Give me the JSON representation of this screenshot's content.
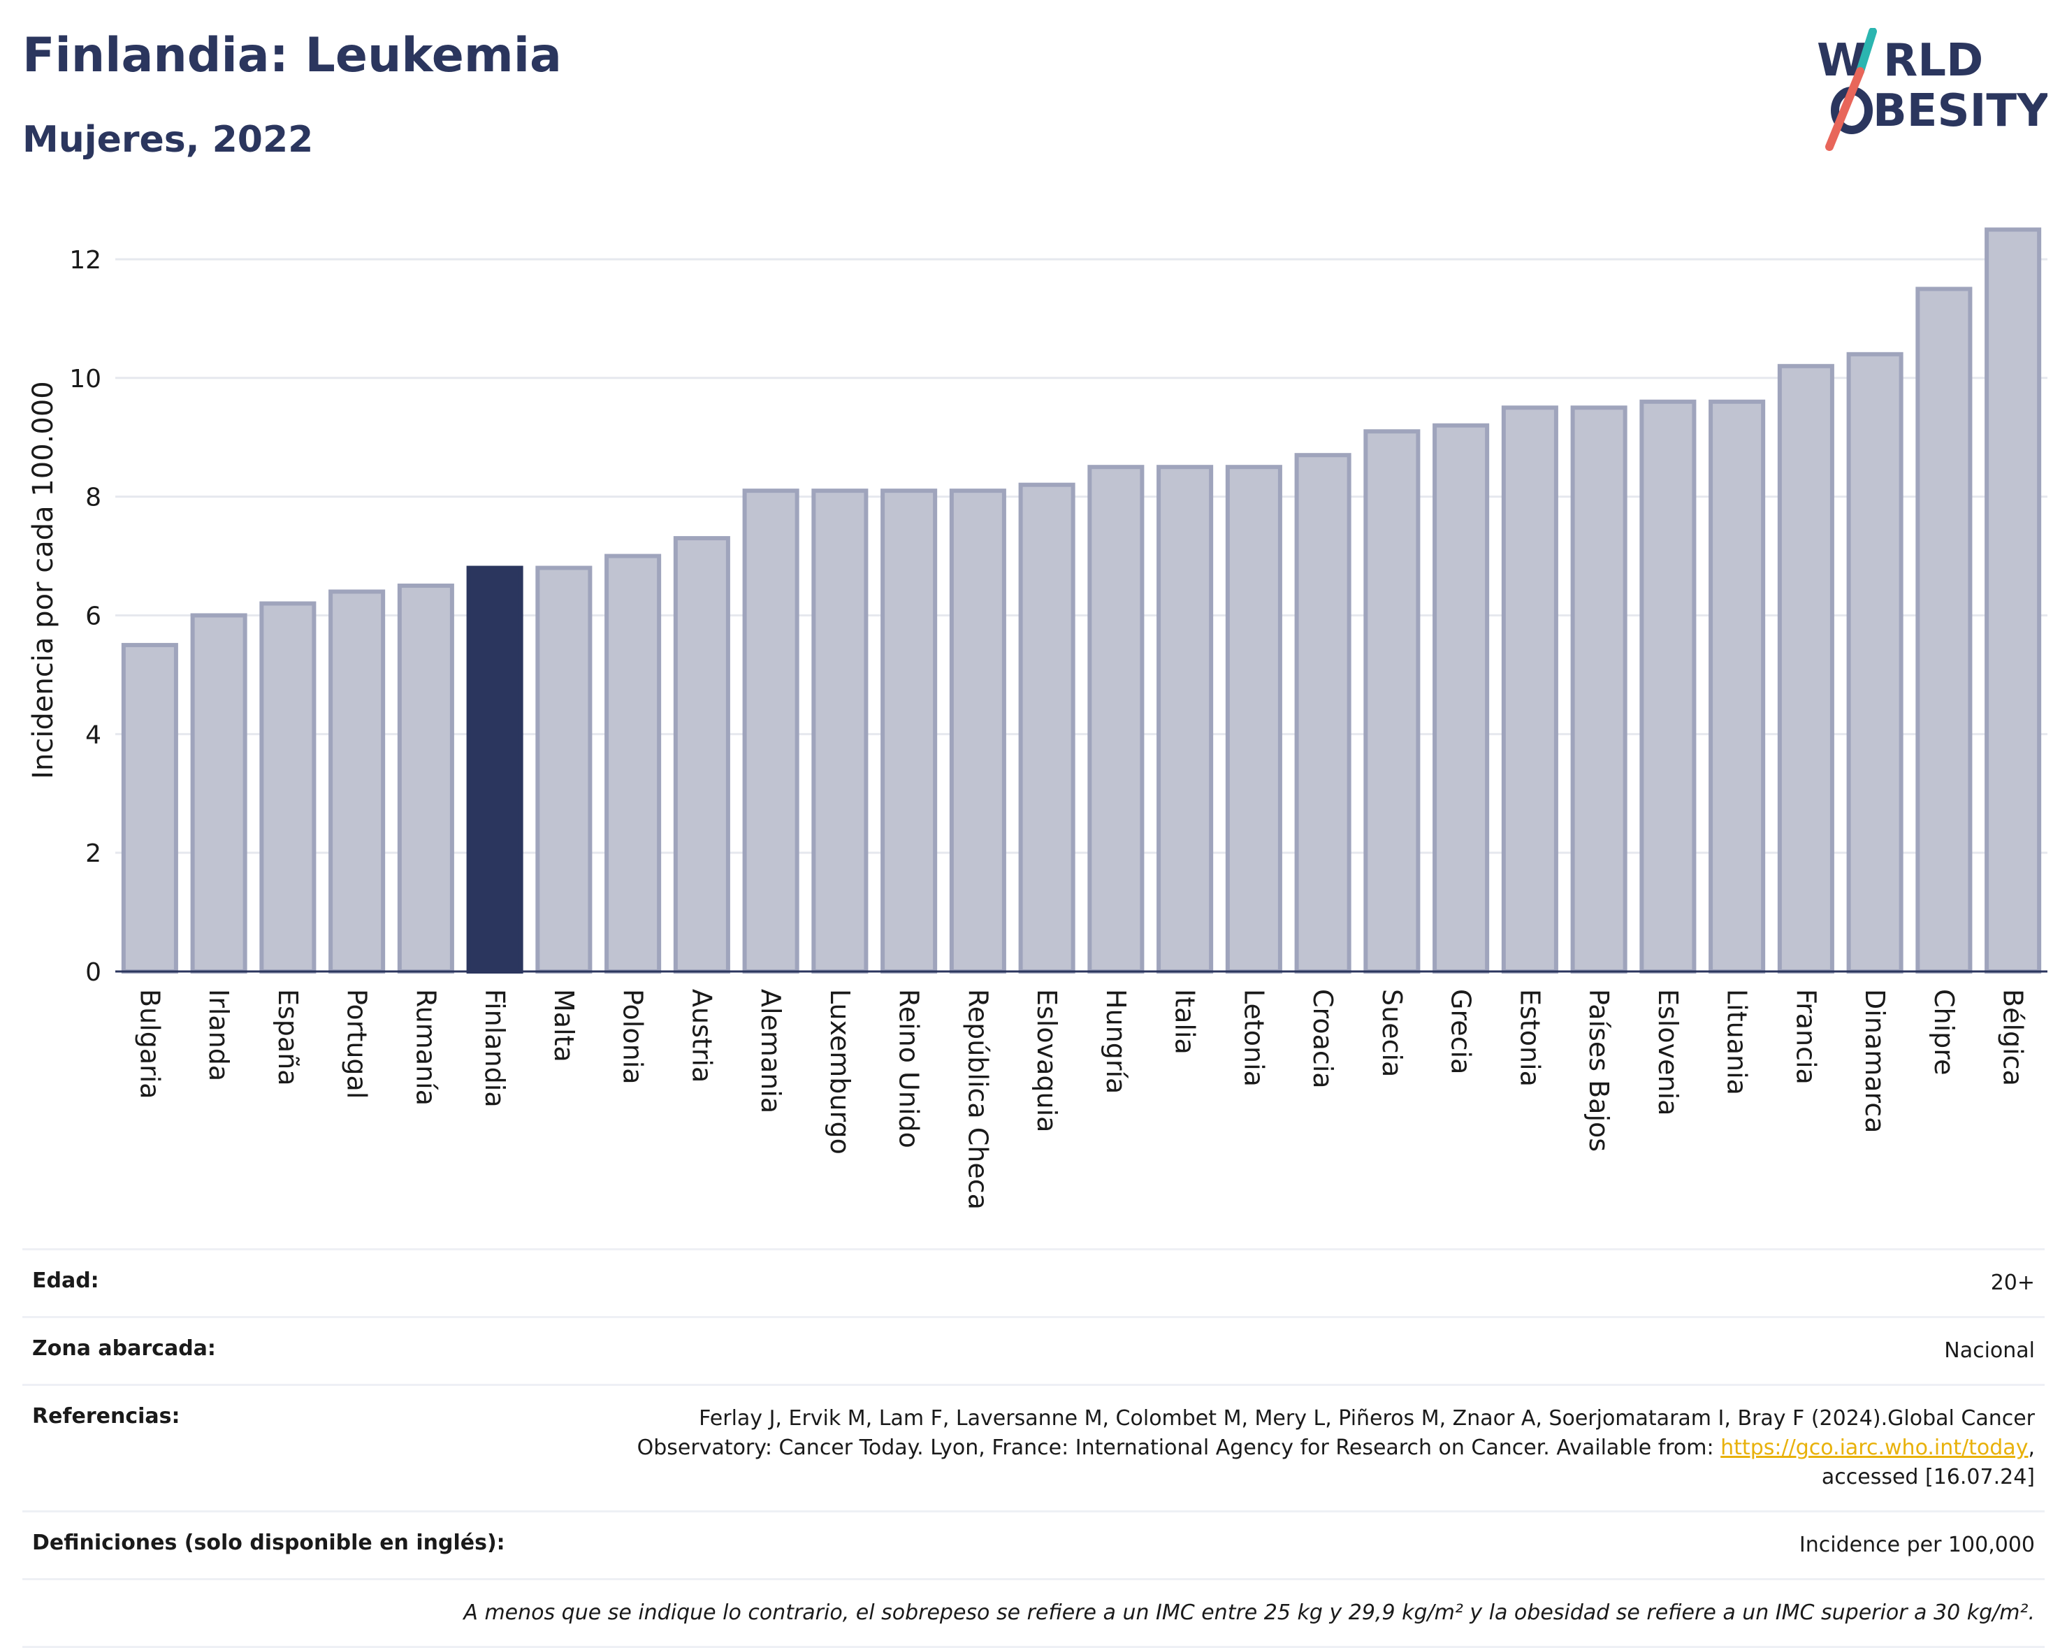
{
  "header": {
    "title": "Finlandia: Leukemia",
    "subtitle": "Mujeres, 2022"
  },
  "logo": {
    "line1_pre": "W",
    "line1_post": "RLD",
    "line2_post": "BESITY",
    "colors": {
      "text": "#2b365e",
      "slash_teal": "#2bb5b0",
      "slash_red": "#e8665a"
    }
  },
  "chart_data": {
    "type": "bar",
    "ylabel": "Incidencia por cada 100.000",
    "xlabel": "",
    "ylim": [
      0,
      12.6
    ],
    "yticks": [
      0,
      2,
      4,
      6,
      8,
      10,
      12
    ],
    "grid": true,
    "highlight": "Finlandia",
    "colors": {
      "bar": "#c0c3d1",
      "bar_edge": "#9fa4bc",
      "highlight": "#2b365e",
      "grid": "#e6e8ee"
    },
    "categories": [
      "Bulgaria",
      "Irlanda",
      "España",
      "Portugal",
      "Rumanía",
      "Finlandia",
      "Malta",
      "Polonia",
      "Austria",
      "Alemania",
      "Luxemburgo",
      "Reino Unido",
      "República Checa",
      "Eslovaquia",
      "Hungría",
      "Italia",
      "Letonia",
      "Croacia",
      "Suecia",
      "Grecia",
      "Estonia",
      "Países Bajos",
      "Eslovenia",
      "Lituania",
      "Francia",
      "Dinamarca",
      "Chipre",
      "Bélgica"
    ],
    "values": [
      5.5,
      6.0,
      6.2,
      6.4,
      6.5,
      6.8,
      6.8,
      7.0,
      7.3,
      8.1,
      8.1,
      8.1,
      8.1,
      8.2,
      8.5,
      8.5,
      8.5,
      8.7,
      9.1,
      9.2,
      9.5,
      9.5,
      9.6,
      9.6,
      10.2,
      10.4,
      11.5,
      12.5
    ]
  },
  "meta": {
    "age_label": "Edad:",
    "age_value": "20+",
    "zone_label": "Zona abarcada:",
    "zone_value": "Nacional",
    "ref_label": "Referencias:",
    "ref_text_1": "Ferlay J, Ervik M, Lam F, Laversanne M, Colombet M, Mery L, Piñeros M, Znaor A, Soerjomataram I, Bray F (2024).Global Cancer",
    "ref_text_2": "Observatory: Cancer Today. Lyon, France: International Agency for Research on Cancer. Available from: ",
    "ref_link": "https://gco.iarc.who.int/today",
    "ref_text_3": ",",
    "ref_text_4": "accessed [16.07.24]",
    "def_label": "Definiciones (solo disponible en inglés):",
    "def_value": "Incidence per 100,000",
    "note": "A menos que se indique lo contrario, el sobrepeso se refiere a un IMC entre 25 kg y 29,9 kg/m² y la obesidad se refiere a un IMC superior a 30 kg/m²."
  }
}
